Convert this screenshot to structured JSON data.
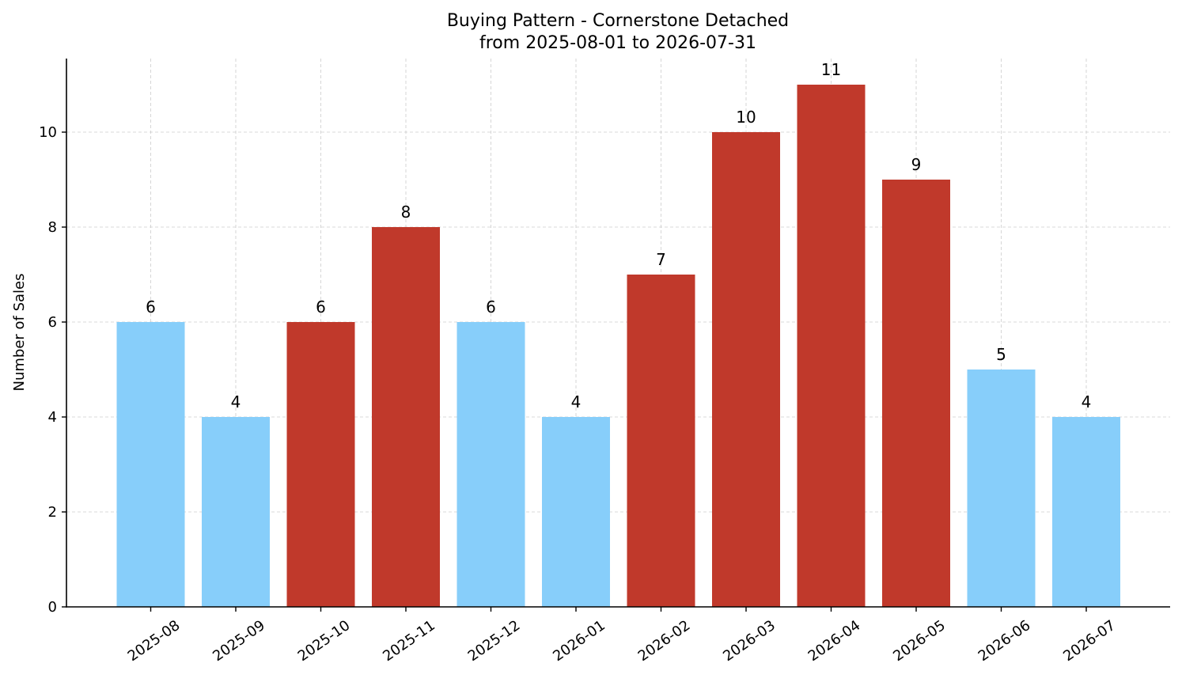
{
  "chart_data": {
    "type": "bar",
    "title": "Buying Pattern - Cornerstone Detached",
    "subtitle": "from 2025-08-01 to 2026-07-31",
    "xlabel": "",
    "ylabel": "Number of Sales",
    "categories": [
      "2025-08",
      "2025-09",
      "2025-10",
      "2025-11",
      "2025-12",
      "2026-01",
      "2026-02",
      "2026-03",
      "2026-04",
      "2026-05",
      "2026-06",
      "2026-07"
    ],
    "values": [
      6,
      4,
      6,
      8,
      6,
      4,
      7,
      10,
      11,
      9,
      5,
      4
    ],
    "bar_colors": [
      "#87CEFA",
      "#87CEFA",
      "#C0392B",
      "#C0392B",
      "#87CEFA",
      "#87CEFA",
      "#C0392B",
      "#C0392B",
      "#C0392B",
      "#C0392B",
      "#87CEFA",
      "#87CEFA"
    ],
    "ylim": [
      0,
      11.55
    ],
    "yticks": [
      0,
      2,
      4,
      6,
      8,
      10
    ],
    "grid": true,
    "data_labels": true,
    "x_tick_rotation_deg": 35
  }
}
